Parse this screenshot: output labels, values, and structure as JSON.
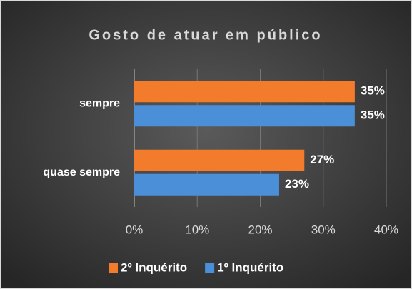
{
  "chart_data": {
    "type": "hbar",
    "title": "Gosto de atuar em público",
    "categories": [
      "sempre",
      "quase sempre"
    ],
    "series": [
      {
        "name": "2º Inquérito",
        "color": "#f27c2c",
        "values": [
          35,
          27
        ],
        "value_labels": [
          "35%",
          "27%"
        ]
      },
      {
        "name": "1º Inquérito",
        "color": "#4a8fd8",
        "values": [
          35,
          23
        ],
        "value_labels": [
          "35%",
          "23%"
        ]
      }
    ],
    "xlim": [
      0,
      40
    ],
    "xticks": [
      {
        "value": 0,
        "label": "0%"
      },
      {
        "value": 10,
        "label": "10%"
      },
      {
        "value": 20,
        "label": "20%"
      },
      {
        "value": 30,
        "label": "30%"
      },
      {
        "value": 40,
        "label": "40%"
      }
    ],
    "grid": true,
    "legend": "bottom"
  }
}
